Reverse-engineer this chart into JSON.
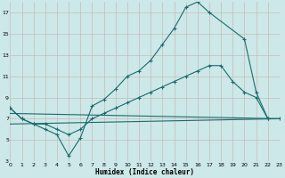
{
  "xlabel": "Humidex (Indice chaleur)",
  "bg_color": "#cce8e8",
  "line_color": "#1a6b6b",
  "grid_color": "#b0d8d8",
  "xlim": [
    0,
    23
  ],
  "ylim": [
    3,
    18
  ],
  "xtick_labels": [
    "0",
    "1",
    "2",
    "3",
    "4",
    "5",
    "6",
    "7",
    "8",
    "9",
    "10",
    "11",
    "12",
    "13",
    "14",
    "15",
    "16",
    "17",
    "18",
    "19",
    "20",
    "21",
    "22",
    "23"
  ],
  "xticks": [
    0,
    1,
    2,
    3,
    4,
    5,
    6,
    7,
    8,
    9,
    10,
    11,
    12,
    13,
    14,
    15,
    16,
    17,
    18,
    19,
    20,
    21,
    22,
    23
  ],
  "yticks": [
    3,
    5,
    7,
    9,
    11,
    13,
    15,
    17
  ],
  "curve1_x": [
    0,
    1,
    2,
    3,
    4,
    5,
    6,
    7,
    8,
    9,
    10,
    11,
    12,
    13,
    14,
    15,
    16,
    17,
    20,
    21,
    22
  ],
  "curve1_y": [
    8.0,
    7.0,
    6.5,
    6.0,
    5.5,
    3.5,
    5.2,
    8.2,
    8.8,
    9.8,
    11.0,
    11.5,
    12.5,
    14.0,
    15.5,
    17.5,
    18.0,
    17.0,
    14.5,
    9.5,
    7.0
  ],
  "curve2_x": [
    0,
    1,
    2,
    3,
    4,
    5,
    6,
    7,
    8,
    9,
    10,
    11,
    12,
    13,
    14,
    15,
    16,
    17,
    18,
    19,
    20,
    21,
    22,
    23
  ],
  "curve2_y": [
    8.0,
    7.0,
    6.5,
    6.5,
    6.0,
    5.5,
    6.0,
    7.0,
    7.5,
    8.0,
    8.5,
    9.0,
    9.5,
    10.0,
    10.5,
    11.0,
    11.5,
    12.0,
    12.0,
    10.5,
    9.5,
    9.0,
    7.0,
    7.0
  ],
  "line3_x": [
    0,
    23
  ],
  "line3_y": [
    7.5,
    7.0
  ],
  "line4_x": [
    0,
    23
  ],
  "line4_y": [
    6.5,
    7.0
  ]
}
